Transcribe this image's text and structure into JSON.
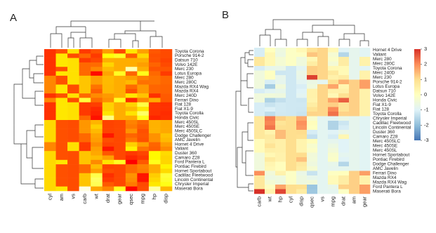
{
  "chart_data": [
    {
      "type": "heatmap",
      "title": "A",
      "colors": [
        "#ff0000",
        "#ff8000",
        "#ffff00",
        "#ffffe0"
      ],
      "columns": [
        "cyl",
        "am",
        "vs",
        "carb",
        "wt",
        "drat",
        "gear",
        "qsec",
        "mpg",
        "hp",
        "disp"
      ],
      "rows": [
        "Toyota Corona",
        "Porsche 914-2",
        "Datsun 710",
        "Volvo 142E",
        "Merc 230",
        "Lotus Europa",
        "Merc 280",
        "Merc 280C",
        "Mazda RX4 Wag",
        "Mazda RX4",
        "Merc 240D",
        "Ferrari Dino",
        "Fiat 128",
        "Fiat X1-9",
        "Toyota Corolla",
        "Honda Civic",
        "Merc 450SL",
        "Merc 450SE",
        "Merc 450SLC",
        "Dodge Challenger",
        "AMC Javelin",
        "Hornet 4 Drive",
        "Valiant",
        "Duster 360",
        "Camaro Z28",
        "Ford Pantera L",
        "Pontiac Firebird",
        "Hornet Sportabout",
        "Cadillac Fleetwood",
        "Lincoln Continental",
        "Chrysler Imperial",
        "Maserati Bora"
      ],
      "values": [
        [
          -1.22,
          -0.81,
          1.12,
          -1.12,
          -0.77,
          0.19,
          -0.93,
          1.21,
          0.23,
          -0.72,
          -0.89
        ],
        [
          -1.22,
          1.19,
          -0.87,
          -0.5,
          -1.1,
          1.56,
          1.78,
          -0.64,
          0.98,
          -0.81,
          -0.89
        ],
        [
          -1.22,
          1.19,
          1.12,
          -1.12,
          -0.92,
          0.47,
          0.42,
          0.43,
          0.45,
          -0.78,
          -0.99
        ],
        [
          -1.22,
          1.19,
          1.12,
          -0.5,
          -0.45,
          0.96,
          0.42,
          0.42,
          0.22,
          -0.55,
          -0.89
        ],
        [
          -1.22,
          -0.81,
          1.12,
          -0.5,
          -0.07,
          0.6,
          0.42,
          2.83,
          0.45,
          -0.75,
          -0.73
        ],
        [
          -1.22,
          1.19,
          1.12,
          -0.5,
          -1.74,
          0.32,
          1.78,
          -0.53,
          1.71,
          -0.49,
          -1.09
        ],
        [
          -0.1,
          -0.81,
          1.12,
          0.74,
          0.23,
          0.6,
          0.42,
          0.25,
          -0.15,
          -0.35,
          -0.51
        ],
        [
          -0.1,
          -0.81,
          1.12,
          0.74,
          0.23,
          0.6,
          0.42,
          0.59,
          -0.38,
          -0.35,
          -0.51
        ],
        [
          -0.1,
          1.19,
          -0.87,
          0.74,
          -0.35,
          0.57,
          0.42,
          -0.46,
          0.15,
          -0.54,
          -0.57
        ],
        [
          -0.1,
          1.19,
          -0.87,
          0.74,
          -0.61,
          0.57,
          0.42,
          -0.78,
          0.15,
          -0.54,
          -0.57
        ],
        [
          -1.22,
          -0.81,
          1.12,
          -0.5,
          -0.03,
          0.17,
          0.42,
          1.2,
          0.72,
          -1.24,
          -0.68
        ],
        [
          -0.1,
          1.19,
          -0.87,
          1.97,
          -0.46,
          0.04,
          1.78,
          -1.31,
          -0.06,
          0.41,
          -0.69
        ],
        [
          -1.22,
          1.19,
          1.12,
          -1.12,
          -1.04,
          0.9,
          0.42,
          0.91,
          2.04,
          -1.18,
          -1.23
        ],
        [
          -1.22,
          1.19,
          1.12,
          -1.12,
          -1.31,
          0.9,
          0.42,
          0.59,
          1.2,
          -1.18,
          -1.22
        ],
        [
          -1.22,
          1.19,
          1.12,
          -1.12,
          -1.41,
          1.17,
          0.42,
          1.15,
          2.29,
          -1.19,
          -1.29
        ],
        [
          -1.22,
          1.19,
          1.12,
          -0.5,
          -1.64,
          2.49,
          0.42,
          0.38,
          1.71,
          -1.38,
          -1.25
        ],
        [
          1.01,
          -0.81,
          -0.87,
          0.12,
          0.52,
          -0.98,
          -0.93,
          -0.14,
          -0.46,
          0.49,
          0.36
        ],
        [
          1.01,
          -0.81,
          -0.87,
          0.12,
          0.87,
          -0.98,
          -0.93,
          -0.25,
          -0.61,
          0.49,
          0.36
        ],
        [
          1.01,
          -0.81,
          -0.87,
          0.12,
          0.58,
          -0.98,
          -0.93,
          0.08,
          -0.81,
          0.49,
          0.36
        ],
        [
          1.01,
          -0.81,
          -0.87,
          -0.5,
          0.31,
          -1.56,
          -0.93,
          -0.55,
          -0.76,
          0.05,
          0.7
        ],
        [
          1.01,
          -0.81,
          -0.87,
          -0.5,
          0.22,
          -0.84,
          -0.93,
          -0.31,
          -0.81,
          0.05,
          0.59
        ],
        [
          -0.1,
          -0.81,
          1.12,
          -1.12,
          0.0,
          -0.97,
          -0.93,
          0.89,
          0.22,
          -0.54,
          0.22
        ],
        [
          -0.1,
          -0.81,
          1.12,
          -1.12,
          0.25,
          -1.56,
          -0.93,
          1.33,
          -0.33,
          -0.61,
          -0.05
        ],
        [
          1.01,
          -0.81,
          -0.87,
          0.74,
          0.36,
          -0.72,
          -0.93,
          -1.12,
          -0.96,
          1.43,
          1.04
        ],
        [
          1.01,
          -0.81,
          -0.87,
          0.74,
          0.64,
          0.25,
          -0.93,
          -1.36,
          -1.13,
          1.43,
          0.96
        ],
        [
          1.01,
          1.19,
          -0.87,
          0.74,
          -0.05,
          1.17,
          1.78,
          -1.87,
          -0.71,
          1.71,
          0.97
        ],
        [
          1.01,
          -0.81,
          -0.87,
          -0.5,
          0.64,
          -0.97,
          -0.93,
          -0.45,
          -0.15,
          0.41,
          1.37
        ],
        [
          1.01,
          -0.81,
          -0.87,
          -0.5,
          0.23,
          -0.84,
          -0.93,
          -0.46,
          -0.23,
          0.41,
          1.04
        ],
        [
          1.01,
          -0.81,
          -0.87,
          0.74,
          2.08,
          -1.25,
          -0.93,
          0.07,
          -1.61,
          0.85,
          1.95
        ],
        [
          1.01,
          -0.81,
          -0.87,
          0.74,
          2.26,
          -1.12,
          -0.93,
          -0.02,
          -1.61,
          1.0,
          1.85
        ],
        [
          1.01,
          -0.81,
          -0.87,
          0.74,
          2.17,
          -0.69,
          -0.93,
          -0.24,
          -0.89,
          1.21,
          1.69
        ],
        [
          1.01,
          1.19,
          -0.87,
          3.21,
          0.36,
          -0.11,
          1.78,
          -1.82,
          -0.84,
          2.75,
          0.57
        ]
      ]
    },
    {
      "type": "heatmap",
      "title": "B",
      "colors": [
        "#4575b4",
        "#91bfdb",
        "#e0f3f8",
        "#ffffbf",
        "#fee090",
        "#fc8d59",
        "#d73027"
      ],
      "zlim": [
        -3,
        3
      ],
      "zticks": [
        3,
        2,
        1,
        0,
        -1,
        -2,
        -3
      ],
      "columns": [
        "carb",
        "wt",
        "hp",
        "cyl",
        "disp",
        "qsec",
        "vs",
        "mpg",
        "drat",
        "am",
        "gear"
      ],
      "rows": [
        "Hornet 4 Drive",
        "Valiant",
        "Merc 280",
        "Merc 280C",
        "Toyota Corona",
        "Merc 240D",
        "Merc 230",
        "Porsche 914-2",
        "Lotus Europa",
        "Datsun 710",
        "Volvo 142E",
        "Honda Civic",
        "Fiat X1-9",
        "Fiat 128",
        "Toyota Corolla",
        "Chrysler Imperial",
        "Cadillac Fleetwood",
        "Lincoln Continental",
        "Duster 360",
        "Camaro Z28",
        "Merc 450SLC",
        "Merc 450SE",
        "Merc 450SL",
        "Hornet Sportabout",
        "Pontiac Firebird",
        "Dodge Challenger",
        "AMC Javelin",
        "Ferrari Dino",
        "Mazda RX4",
        "Mazda RX4 Wag",
        "Ford Pantera L",
        "Maserati Bora"
      ],
      "values": [
        [
          -1.12,
          0.0,
          -0.54,
          -0.1,
          0.22,
          0.89,
          1.12,
          0.22,
          -0.97,
          -0.81,
          -0.93
        ],
        [
          -1.12,
          0.25,
          -0.61,
          -0.1,
          -0.05,
          1.33,
          1.12,
          -0.33,
          -1.56,
          -0.81,
          -0.93
        ],
        [
          0.74,
          0.23,
          -0.35,
          -0.1,
          -0.51,
          0.25,
          1.12,
          -0.15,
          0.6,
          -0.81,
          0.42
        ],
        [
          0.74,
          0.23,
          -0.35,
          -0.1,
          -0.51,
          0.59,
          1.12,
          -0.38,
          0.6,
          -0.81,
          0.42
        ],
        [
          -1.12,
          -0.77,
          -0.72,
          -1.22,
          -0.89,
          1.21,
          1.12,
          0.23,
          0.19,
          -0.81,
          -0.93
        ],
        [
          -0.5,
          -0.03,
          -1.24,
          -1.22,
          -0.68,
          1.2,
          1.12,
          0.72,
          0.17,
          -0.81,
          0.42
        ],
        [
          -0.5,
          -0.07,
          -0.75,
          -1.22,
          -0.73,
          2.83,
          1.12,
          0.45,
          0.6,
          -0.81,
          0.42
        ],
        [
          -0.5,
          -1.1,
          -0.81,
          -1.22,
          -0.89,
          -0.64,
          -0.87,
          0.98,
          1.56,
          1.19,
          1.78
        ],
        [
          -0.5,
          -1.74,
          -0.49,
          -1.22,
          -1.09,
          -0.53,
          1.12,
          1.71,
          0.32,
          1.19,
          1.78
        ],
        [
          -1.12,
          -0.92,
          -0.78,
          -1.22,
          -0.99,
          0.43,
          1.12,
          0.45,
          0.47,
          1.19,
          0.42
        ],
        [
          -0.5,
          -0.45,
          -0.55,
          -1.22,
          -0.89,
          0.42,
          1.12,
          0.22,
          0.96,
          1.19,
          0.42
        ],
        [
          -0.5,
          -1.64,
          -1.38,
          -1.22,
          -1.25,
          0.38,
          1.12,
          1.71,
          2.49,
          1.19,
          0.42
        ],
        [
          -1.12,
          -1.31,
          -1.18,
          -1.22,
          -1.22,
          0.59,
          1.12,
          1.2,
          0.9,
          1.19,
          0.42
        ],
        [
          -1.12,
          -1.04,
          -1.18,
          -1.22,
          -1.23,
          0.91,
          1.12,
          2.04,
          0.9,
          1.19,
          0.42
        ],
        [
          -1.12,
          -1.41,
          -1.19,
          -1.22,
          -1.29,
          1.15,
          1.12,
          2.29,
          1.17,
          1.19,
          0.42
        ],
        [
          0.74,
          2.17,
          1.21,
          1.01,
          1.69,
          -0.24,
          -0.87,
          -0.89,
          -0.69,
          -0.81,
          -0.93
        ],
        [
          0.74,
          2.08,
          0.85,
          1.01,
          1.95,
          0.07,
          -0.87,
          -1.61,
          -1.25,
          -0.81,
          -0.93
        ],
        [
          0.74,
          2.26,
          1.0,
          1.01,
          1.85,
          -0.02,
          -0.87,
          -1.61,
          -1.12,
          -0.81,
          -0.93
        ],
        [
          0.74,
          0.36,
          1.43,
          1.01,
          1.04,
          -1.12,
          -0.87,
          -0.96,
          -0.72,
          -0.81,
          -0.93
        ],
        [
          0.74,
          0.64,
          1.43,
          1.01,
          0.96,
          -1.36,
          -0.87,
          -1.13,
          0.25,
          -0.81,
          -0.93
        ],
        [
          0.12,
          0.58,
          0.49,
          1.01,
          0.36,
          0.08,
          -0.87,
          -0.81,
          -0.98,
          -0.81,
          -0.93
        ],
        [
          0.12,
          0.87,
          0.49,
          1.01,
          0.36,
          -0.25,
          -0.87,
          -0.61,
          -0.98,
          -0.81,
          -0.93
        ],
        [
          0.12,
          0.52,
          0.49,
          1.01,
          0.36,
          -0.14,
          -0.87,
          -0.46,
          -0.98,
          -0.81,
          -0.93
        ],
        [
          -0.5,
          0.23,
          0.41,
          1.01,
          1.04,
          -0.46,
          -0.87,
          -0.23,
          -0.84,
          -0.81,
          -0.93
        ],
        [
          -0.5,
          0.64,
          0.41,
          1.01,
          1.37,
          -0.45,
          -0.87,
          -0.15,
          -0.97,
          -0.81,
          -0.93
        ],
        [
          -0.5,
          0.31,
          0.05,
          1.01,
          0.7,
          -0.55,
          -0.87,
          -0.76,
          -1.56,
          -0.81,
          -0.93
        ],
        [
          -0.5,
          0.22,
          0.05,
          1.01,
          0.59,
          -0.31,
          -0.87,
          -0.81,
          -0.84,
          -0.81,
          -0.93
        ],
        [
          1.97,
          -0.46,
          0.41,
          -0.1,
          -0.69,
          -1.31,
          -0.87,
          -0.06,
          0.04,
          1.19,
          1.78
        ],
        [
          0.74,
          -0.61,
          -0.54,
          -0.1,
          -0.57,
          -0.78,
          -0.87,
          0.15,
          0.57,
          1.19,
          0.42
        ],
        [
          0.74,
          -0.35,
          -0.54,
          -0.1,
          -0.57,
          -0.46,
          -0.87,
          0.15,
          0.57,
          1.19,
          0.42
        ],
        [
          0.74,
          -0.05,
          1.71,
          1.01,
          0.97,
          -1.87,
          -0.87,
          -0.71,
          1.17,
          1.19,
          1.78
        ],
        [
          3.21,
          0.36,
          2.75,
          1.01,
          0.57,
          -1.82,
          -0.87,
          -0.84,
          -0.11,
          1.19,
          1.78
        ]
      ]
    }
  ]
}
